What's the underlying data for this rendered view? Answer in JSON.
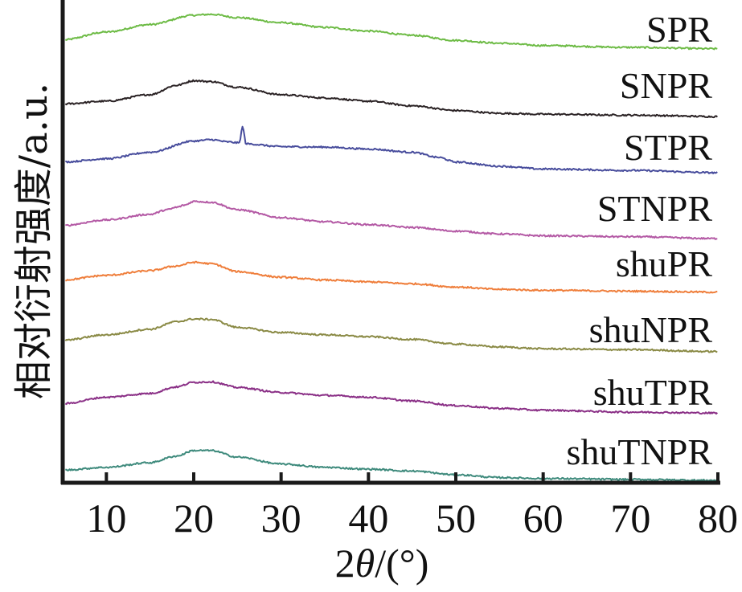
{
  "chart_data": {
    "type": "line",
    "title": "",
    "xlabel": "2θ/(°)",
    "xlabel_parts": {
      "prefix": "2",
      "italic": "θ",
      "suffix": "/(°)"
    },
    "ylabel": "相对衍射强度/a.u.",
    "xlim": [
      5,
      80
    ],
    "x_ticks": [
      10,
      20,
      30,
      40,
      50,
      60,
      70,
      80
    ],
    "x_tick_labels": [
      "10",
      "20",
      "30",
      "40",
      "50",
      "60",
      "70",
      "80"
    ],
    "y_ticks": [],
    "grid": false,
    "stacked_offsets": true,
    "legend": "inline-right",
    "series": [
      {
        "name": "SPR",
        "color": "#6dbb45",
        "points": [
          [
            5,
            0.45
          ],
          [
            10,
            0.62
          ],
          [
            15,
            0.78
          ],
          [
            20,
            0.98
          ],
          [
            22,
            1.0
          ],
          [
            25,
            0.93
          ],
          [
            30,
            0.82
          ],
          [
            35,
            0.72
          ],
          [
            40,
            0.64
          ],
          [
            45,
            0.55
          ],
          [
            50,
            0.44
          ],
          [
            55,
            0.38
          ],
          [
            60,
            0.33
          ],
          [
            70,
            0.29
          ],
          [
            80,
            0.26
          ]
        ]
      },
      {
        "name": "SNPR",
        "color": "#2a2224",
        "points": [
          [
            5,
            0.42
          ],
          [
            10,
            0.48
          ],
          [
            15,
            0.62
          ],
          [
            18,
            0.82
          ],
          [
            20,
            0.92
          ],
          [
            22,
            0.9
          ],
          [
            25,
            0.78
          ],
          [
            30,
            0.62
          ],
          [
            35,
            0.55
          ],
          [
            40,
            0.48
          ],
          [
            45,
            0.38
          ],
          [
            50,
            0.28
          ],
          [
            55,
            0.22
          ],
          [
            60,
            0.2
          ],
          [
            70,
            0.18
          ],
          [
            80,
            0.15
          ]
        ]
      },
      {
        "name": "STPR",
        "color": "#474c9c",
        "points": [
          [
            5,
            0.45
          ],
          [
            10,
            0.52
          ],
          [
            15,
            0.66
          ],
          [
            20,
            0.9
          ],
          [
            22,
            0.93
          ],
          [
            24,
            0.88
          ],
          [
            25.2,
            0.86
          ],
          [
            25.6,
            1.2
          ],
          [
            26.0,
            0.84
          ],
          [
            30,
            0.78
          ],
          [
            35,
            0.77
          ],
          [
            40,
            0.73
          ],
          [
            45,
            0.66
          ],
          [
            48,
            0.55
          ],
          [
            50,
            0.45
          ],
          [
            55,
            0.36
          ],
          [
            60,
            0.3
          ],
          [
            70,
            0.27
          ],
          [
            80,
            0.22
          ]
        ]
      },
      {
        "name": "STNPR",
        "color": "#b45aa5",
        "points": [
          [
            5,
            0.38
          ],
          [
            10,
            0.5
          ],
          [
            15,
            0.62
          ],
          [
            17,
            0.72
          ],
          [
            18,
            0.77
          ],
          [
            19,
            0.82
          ],
          [
            20,
            0.9
          ],
          [
            22,
            0.88
          ],
          [
            25,
            0.72
          ],
          [
            30,
            0.55
          ],
          [
            35,
            0.46
          ],
          [
            40,
            0.4
          ],
          [
            45,
            0.34
          ],
          [
            50,
            0.26
          ],
          [
            55,
            0.2
          ],
          [
            60,
            0.16
          ],
          [
            70,
            0.14
          ],
          [
            80,
            0.1
          ]
        ]
      },
      {
        "name": "shuPR",
        "color": "#ef7e3b",
        "points": [
          [
            5,
            0.4
          ],
          [
            10,
            0.5
          ],
          [
            15,
            0.6
          ],
          [
            18,
            0.7
          ],
          [
            20,
            0.78
          ],
          [
            22,
            0.75
          ],
          [
            25,
            0.58
          ],
          [
            30,
            0.46
          ],
          [
            35,
            0.4
          ],
          [
            40,
            0.36
          ],
          [
            45,
            0.32
          ],
          [
            50,
            0.25
          ],
          [
            55,
            0.2
          ],
          [
            60,
            0.18
          ],
          [
            70,
            0.16
          ],
          [
            80,
            0.14
          ]
        ]
      },
      {
        "name": "shuNPR",
        "color": "#8a8a45",
        "points": [
          [
            5,
            0.38
          ],
          [
            10,
            0.5
          ],
          [
            15,
            0.62
          ],
          [
            18,
            0.78
          ],
          [
            20,
            0.84
          ],
          [
            22,
            0.83
          ],
          [
            25,
            0.66
          ],
          [
            30,
            0.55
          ],
          [
            35,
            0.5
          ],
          [
            40,
            0.46
          ],
          [
            45,
            0.4
          ],
          [
            50,
            0.3
          ],
          [
            55,
            0.24
          ],
          [
            60,
            0.2
          ],
          [
            70,
            0.18
          ],
          [
            80,
            0.14
          ]
        ]
      },
      {
        "name": "shuTPR",
        "color": "#8a2f86",
        "points": [
          [
            5,
            0.4
          ],
          [
            10,
            0.54
          ],
          [
            15,
            0.62
          ],
          [
            18,
            0.76
          ],
          [
            20,
            0.86
          ],
          [
            22,
            0.87
          ],
          [
            25,
            0.75
          ],
          [
            30,
            0.64
          ],
          [
            35,
            0.58
          ],
          [
            40,
            0.54
          ],
          [
            45,
            0.46
          ],
          [
            50,
            0.36
          ],
          [
            55,
            0.3
          ],
          [
            60,
            0.26
          ],
          [
            70,
            0.22
          ],
          [
            80,
            0.2
          ]
        ]
      },
      {
        "name": "shuTNPR",
        "color": "#3e8a7c",
        "points": [
          [
            5,
            0.32
          ],
          [
            10,
            0.38
          ],
          [
            15,
            0.48
          ],
          [
            18,
            0.62
          ],
          [
            20,
            0.74
          ],
          [
            22,
            0.74
          ],
          [
            25,
            0.6
          ],
          [
            30,
            0.45
          ],
          [
            35,
            0.38
          ],
          [
            40,
            0.34
          ],
          [
            45,
            0.3
          ],
          [
            50,
            0.22
          ],
          [
            55,
            0.16
          ],
          [
            60,
            0.14
          ],
          [
            70,
            0.12
          ],
          [
            80,
            0.1
          ]
        ]
      }
    ]
  }
}
